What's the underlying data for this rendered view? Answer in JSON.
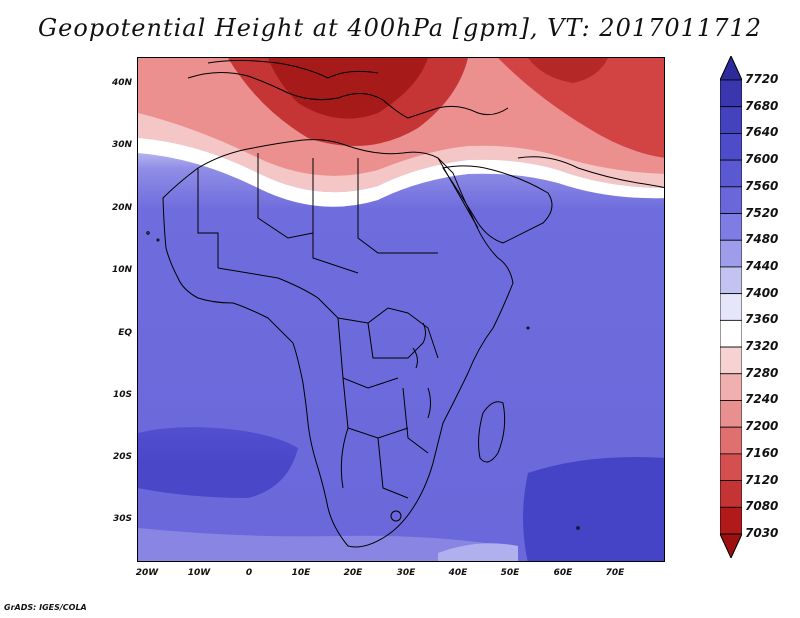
{
  "title": "Geopotential Height at 400hPa [gpm], VT: 2017011712",
  "credit": "GrADS: IGES/COLA",
  "lat_labels": [
    "40N",
    "30N",
    "20N",
    "10N",
    "EQ",
    "10S",
    "20S",
    "30S"
  ],
  "lon_labels": [
    "20W",
    "10W",
    "0",
    "10E",
    "20E",
    "30E",
    "40E",
    "50E",
    "60E",
    "70E"
  ],
  "colorbar": {
    "labels": [
      "7720",
      "7680",
      "7640",
      "7600",
      "7560",
      "7520",
      "7480",
      "7440",
      "7400",
      "7360",
      "7320",
      "7280",
      "7240",
      "7200",
      "7160",
      "7120",
      "7080",
      "7030"
    ],
    "colors": [
      "#2d2a9c",
      "#3a36ad",
      "#4542bd",
      "#4e4cc8",
      "#5b59d2",
      "#6967d9",
      "#7f7de3",
      "#9e9de9",
      "#c3c3f1",
      "#e6e6fa",
      "#ffffff",
      "#f7d2d2",
      "#f0b0b0",
      "#e89090",
      "#e07070",
      "#d45050",
      "#c43434",
      "#b01a1a",
      "#9c1010"
    ],
    "top_arrow_color": "#2d2a9c",
    "bottom_arrow_color": "#9c1010"
  },
  "map": {
    "projection": "latlon",
    "lon_range": [
      "20W",
      "80E"
    ],
    "lat_range": [
      "37S",
      "45N"
    ],
    "field": "geopotential height 400hPa",
    "contour_colors": {
      "high_blue": "#3f3cc4",
      "mid_blue": "#6d6bdd",
      "light_blue": "#b8b8ee",
      "white": "#ffffff",
      "light_red": "#f2b4b4",
      "mid_red": "#df6c6c",
      "deep_red": "#b31e1e"
    }
  }
}
